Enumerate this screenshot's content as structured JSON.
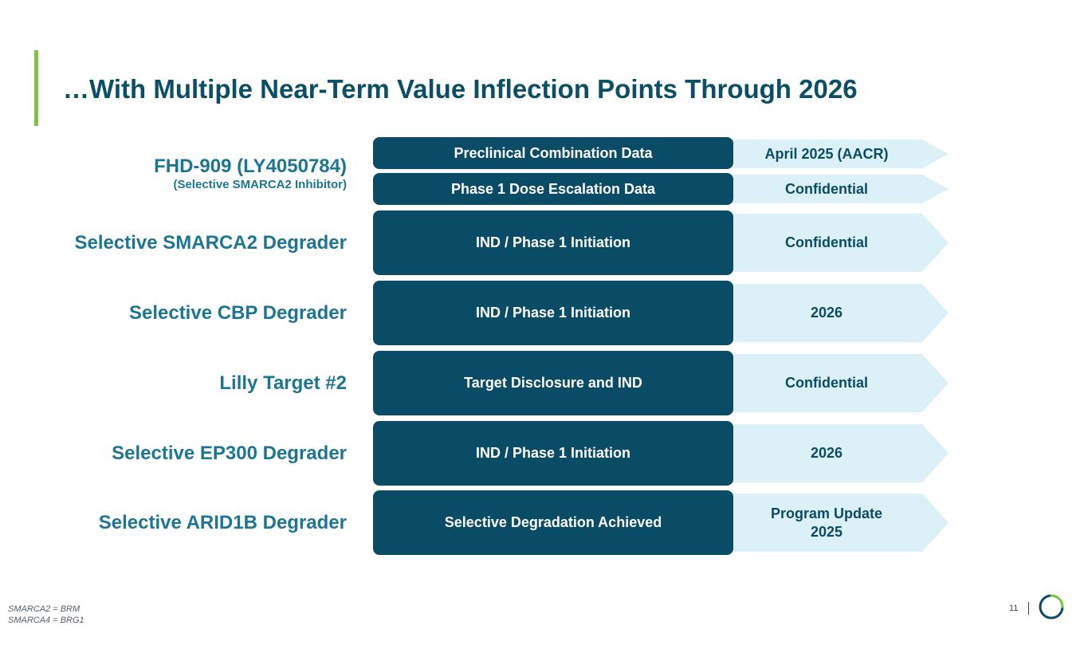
{
  "title": "…With Multiple Near-Term Value Inflection Points Through 2026",
  "programs": [
    {
      "name": "FHD-909 (LY4050784)",
      "subtitle": "(Selective SMARCA2 Inhibitor)",
      "milestones": [
        {
          "label": "Preclinical Combination Data",
          "timing": "April 2025 (AACR)"
        },
        {
          "label": "Phase 1 Dose Escalation Data",
          "timing": "Confidential"
        }
      ]
    },
    {
      "name": "Selective SMARCA2 Degrader",
      "milestones": [
        {
          "label": "IND / Phase 1 Initiation",
          "timing": "Confidential"
        }
      ]
    },
    {
      "name": "Selective CBP Degrader",
      "milestones": [
        {
          "label": "IND / Phase 1 Initiation",
          "timing": "2026"
        }
      ]
    },
    {
      "name": "Lilly Target #2",
      "milestones": [
        {
          "label": "Target Disclosure and IND",
          "timing": "Confidential"
        }
      ]
    },
    {
      "name": "Selective EP300 Degrader",
      "milestones": [
        {
          "label": "IND / Phase 1 Initiation",
          "timing": "2026"
        }
      ]
    },
    {
      "name": "Selective ARID1B Degrader",
      "milestones": [
        {
          "label": "Selective Degradation Achieved",
          "timing_line1": "Program Update",
          "timing_line2": "2025"
        }
      ]
    }
  ],
  "footnotes": [
    "SMARCA2 = BRM",
    "SMARCA4 = BRG1"
  ],
  "page_number": "11",
  "logo_icon": "circle-arc-logo-icon",
  "colors": {
    "accent": "#7dc242",
    "navy": "#0a4b66",
    "label_blue": "#1d7594",
    "light_blue": "#dcf0f8"
  }
}
